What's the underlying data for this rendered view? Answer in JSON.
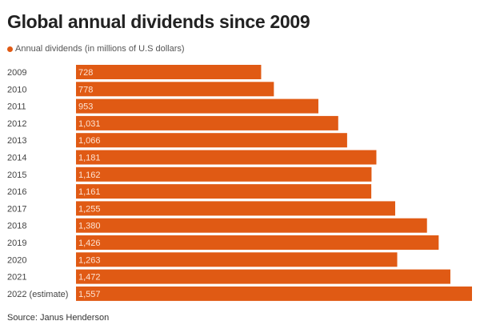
{
  "chart_data": {
    "type": "bar",
    "orientation": "horizontal",
    "title": "Global annual dividends since 2009",
    "legend": [
      {
        "name": "Annual dividends (in millions of U.S dollars)",
        "color": "#e05a14"
      }
    ],
    "legend_position": "top-left",
    "categories": [
      "2009",
      "2010",
      "2011",
      "2012",
      "2013",
      "2014",
      "2015",
      "2016",
      "2017",
      "2018",
      "2019",
      "2020",
      "2021",
      "2022 (estimate)"
    ],
    "values": [
      728,
      778,
      953,
      1031,
      1066,
      1181,
      1162,
      1161,
      1255,
      1380,
      1426,
      1263,
      1472,
      1557
    ],
    "value_labels": [
      "728",
      "778",
      "953",
      "1,031",
      "1,066",
      "1,181",
      "1,162",
      "1,161",
      "1,255",
      "1,380",
      "1,426",
      "1,263",
      "1,472",
      "1,557"
    ],
    "xlim": [
      0,
      1557
    ],
    "grid": false,
    "bar_color": "#e05a14",
    "source": "Source: Janus Henderson"
  }
}
